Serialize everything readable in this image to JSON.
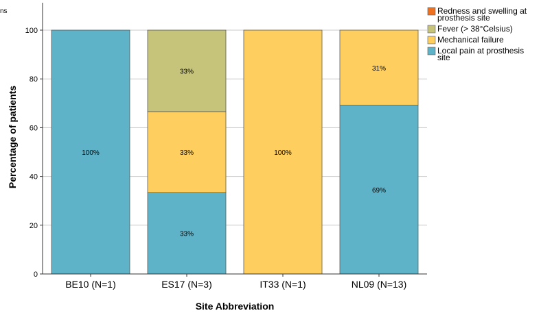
{
  "corner_fragment": "ns",
  "chart_data": {
    "type": "bar",
    "stacked": true,
    "xlabel": "Site Abbreviation",
    "ylabel": "Percentage of patients",
    "ylim": [
      0,
      110
    ],
    "yticks": [
      0,
      20,
      40,
      60,
      80,
      100
    ],
    "grid": true,
    "legend_position": "top-right",
    "categories": [
      "BE10 (N=1)",
      "ES17 (N=3)",
      "IT33 (N=1)",
      "NL09 (N=13)"
    ],
    "series": [
      {
        "name": "Local pain at prosthesis site",
        "color": "#5eb3c8",
        "values": [
          100,
          33.3,
          0,
          69.2
        ],
        "labels": [
          "100%",
          "33%",
          "",
          "69%"
        ]
      },
      {
        "name": "Mechanical failure",
        "color": "#fece5e",
        "values": [
          0,
          33.3,
          100,
          30.8
        ],
        "labels": [
          "",
          "33%",
          "100%",
          "31%"
        ]
      },
      {
        "name": "Fever (> 38°Celsius)",
        "color": "#c6c47a",
        "values": [
          0,
          33.4,
          0,
          0
        ],
        "labels": [
          "",
          "33%",
          "",
          ""
        ]
      },
      {
        "name": "Redness and swelling at prosthesis site",
        "color": "#ee7021",
        "values": [
          0,
          0,
          0,
          0
        ],
        "labels": [
          "",
          "",
          "",
          ""
        ]
      }
    ],
    "legend_order": [
      3,
      2,
      1,
      0
    ]
  }
}
